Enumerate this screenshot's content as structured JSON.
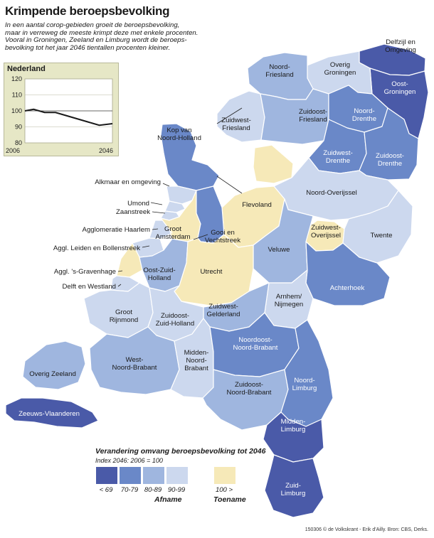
{
  "header": {
    "title": "Krimpende beroepsbevolking",
    "subtitle_lines": [
      "In een aantal corop-gebieden groeit de beroepsbevolking,",
      "maar in verreweg de meeste krimpt deze met enkele procenten.",
      "Vooral in Groningen, Zeeland en Limburg wordt de beroeps-",
      "bevolking tot het jaar 2046 tientallen procenten kleiner."
    ]
  },
  "inset": {
    "title": "Nederland",
    "chart_data": {
      "type": "line",
      "x": [
        2006,
        2010,
        2015,
        2020,
        2025,
        2030,
        2035,
        2040,
        2046
      ],
      "series": [
        {
          "values": [
            100,
            101,
            99,
            99,
            97,
            95,
            93,
            91,
            92
          ]
        }
      ],
      "xticks": [
        "2006",
        "2046"
      ],
      "yticks": [
        80,
        90,
        100,
        110,
        120
      ],
      "ylim": [
        80,
        120
      ],
      "reference_line": 100
    }
  },
  "colors": {
    "lt69": "#4a5aa8",
    "70-79": "#6a88c8",
    "80-89": "#9fb6df",
    "90-99": "#ccd8ee",
    "gt100": "#f6e9b8",
    "stroke": "#ffffff",
    "water": "#ffffff"
  },
  "regions": [
    {
      "id": "delfzijl",
      "label": [
        "Delfzijl en",
        "Omgeving"
      ],
      "cat": "lt69"
    },
    {
      "id": "oost-groningen",
      "label": [
        "Oost-",
        "Groningen"
      ],
      "cat": "lt69"
    },
    {
      "id": "overig-groningen",
      "label": [
        "Overig",
        "Groningen"
      ],
      "cat": "90-99"
    },
    {
      "id": "noord-friesland",
      "label": [
        "Noord-",
        "Friesland"
      ],
      "cat": "80-89"
    },
    {
      "id": "zuidwest-friesland",
      "label": [
        "Zuidwest-",
        "Friesland"
      ],
      "cat": "90-99"
    },
    {
      "id": "zuidoost-friesland",
      "label": [
        "Zuidoost-",
        "Friesland"
      ],
      "cat": "80-89"
    },
    {
      "id": "noord-drenthe",
      "label": [
        "Noord-",
        "Drenthe"
      ],
      "cat": "70-79"
    },
    {
      "id": "zuidwest-drenthe",
      "label": [
        "Zuidwest-",
        "Drenthe"
      ],
      "cat": "70-79"
    },
    {
      "id": "zuidoost-drenthe",
      "label": [
        "Zuidoost-",
        "Drenthe"
      ],
      "cat": "70-79"
    },
    {
      "id": "kop-nh",
      "label": [
        "Kop van",
        "Noord-Holland"
      ],
      "cat": "70-79"
    },
    {
      "id": "flevoland-n",
      "label": [],
      "cat": "gt100"
    },
    {
      "id": "flevoland",
      "label": [
        "Flevoland"
      ],
      "cat": "gt100"
    },
    {
      "id": "noord-overijssel",
      "label": [
        "Noord-Overijssel"
      ],
      "cat": "90-99"
    },
    {
      "id": "zuidwest-overijssel",
      "label": [
        "Zuidwest-",
        "Overijssel"
      ],
      "cat": "gt100"
    },
    {
      "id": "twente",
      "label": [
        "Twente"
      ],
      "cat": "90-99"
    },
    {
      "id": "alkmaar",
      "label": [],
      "cat": "90-99"
    },
    {
      "id": "zaanstreek",
      "label": [],
      "cat": "90-99"
    },
    {
      "id": "umond",
      "label": [],
      "cat": "90-99"
    },
    {
      "id": "haarlem",
      "label": [],
      "cat": "90-99"
    },
    {
      "id": "groot-amsterdam",
      "label": [
        "Groot",
        "Amsterdam"
      ],
      "cat": "gt100"
    },
    {
      "id": "gooi",
      "label": [
        "Gooi en",
        "Vechtstreek"
      ],
      "cat": "70-79"
    },
    {
      "id": "veluwe",
      "label": [
        "Veluwe"
      ],
      "cat": "80-89"
    },
    {
      "id": "achterhoek",
      "label": [
        "Achterhoek"
      ],
      "cat": "70-79"
    },
    {
      "id": "leiden",
      "label": [],
      "cat": "90-99"
    },
    {
      "id": "gravenhage",
      "label": [],
      "cat": "gt100"
    },
    {
      "id": "delft",
      "label": [],
      "cat": "90-99"
    },
    {
      "id": "oost-zh",
      "label": [
        "Oost-Zuid-",
        "Holland"
      ],
      "cat": "80-89"
    },
    {
      "id": "utrecht",
      "label": [
        "Utrecht"
      ],
      "cat": "gt100"
    },
    {
      "id": "arnhem",
      "label": [
        "Arnhem/",
        "Nijmegen"
      ],
      "cat": "90-99"
    },
    {
      "id": "zuidwest-gelderland",
      "label": [
        "Zuidwest-",
        "Gelderland"
      ],
      "cat": "80-89"
    },
    {
      "id": "groot-rijnmond",
      "label": [
        "Groot",
        "Rijnmond"
      ],
      "cat": "90-99"
    },
    {
      "id": "zuidoost-zh",
      "label": [
        "Zuidoost-",
        "Zuid-Holland"
      ],
      "cat": "90-99"
    },
    {
      "id": "overig-zeeland",
      "label": [
        "Overig Zeeland"
      ],
      "cat": "80-89"
    },
    {
      "id": "zeeuws-vlaanderen",
      "label": [
        "Zeeuws-Vlaanderen"
      ],
      "cat": "lt69"
    },
    {
      "id": "west-nb",
      "label": [
        "West-",
        "Noord-Brabant"
      ],
      "cat": "80-89"
    },
    {
      "id": "midden-nb",
      "label": [
        "Midden-",
        "Noord-",
        "Brabant"
      ],
      "cat": "90-99"
    },
    {
      "id": "noordoost-nb",
      "label": [
        "Noordoost-",
        "Noord-Brabant"
      ],
      "cat": "70-79"
    },
    {
      "id": "zuidoost-nb",
      "label": [
        "Zuidoost-",
        "Noord-Brabant"
      ],
      "cat": "80-89"
    },
    {
      "id": "noord-limburg",
      "label": [
        "Noord-",
        "Limburg"
      ],
      "cat": "70-79"
    },
    {
      "id": "midden-limburg",
      "label": [
        "Midden-",
        "Limburg"
      ],
      "cat": "lt69"
    },
    {
      "id": "zuid-limburg",
      "label": [
        "Zuid-",
        "Limburg"
      ],
      "cat": "lt69"
    }
  ],
  "side_labels": [
    "Alkmaar en omgeving",
    "Umond",
    "Zaanstreek",
    "Agglomeratie Haarlem",
    "Aggl. Leiden en Bollenstreek",
    "Aggl. 's-Gravenhage",
    "Delft en Westland"
  ],
  "legend": {
    "title": "Verandering omvang beroepsbevolking tot 2046",
    "subtitle": "Index 2046: 2006 = 100",
    "items": [
      {
        "cat": "lt69",
        "label": "< 69"
      },
      {
        "cat": "70-79",
        "label": "70-79"
      },
      {
        "cat": "80-89",
        "label": "80-89"
      },
      {
        "cat": "90-99",
        "label": "90-99"
      },
      {
        "cat": "gt100",
        "label": "100 >"
      }
    ],
    "group_decline": "Afname",
    "group_growth": "Toename"
  },
  "credit": "150306 © de Volkskrant - Erik d'Ailly. Bron: CBS, Derks."
}
